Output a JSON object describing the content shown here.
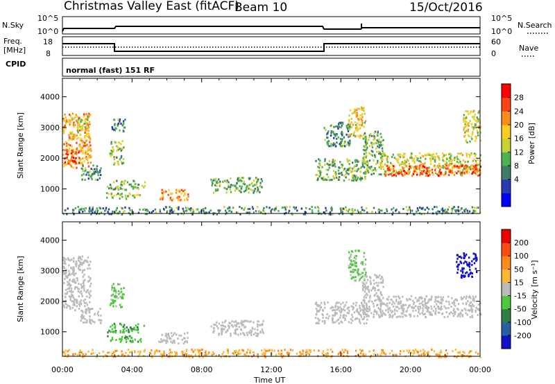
{
  "header": {
    "title": "Christmas Valley East (fitACF)",
    "beam": "Beam 10",
    "date": "15/Oct/2016"
  },
  "summary_panels": {
    "nsky": {
      "label": "N.Sky",
      "ticks": [
        "10^5",
        "10^0"
      ]
    },
    "nsearch": {
      "label": "N.Search"
    },
    "freq": {
      "label_line1": "Freq.",
      "label_line2": "[MHz]",
      "ticks": [
        "18",
        "8"
      ]
    },
    "nave": {
      "label": "Nave",
      "ticks": [
        "60",
        "0"
      ]
    },
    "cpid": {
      "label": "CPID",
      "mode": "normal (fast) 151 RF"
    }
  },
  "time_axis": {
    "label": "Time UT",
    "ticks": [
      "00:00",
      "04:00",
      "08:00",
      "12:00",
      "16:00",
      "20:00",
      "00:00"
    ]
  },
  "power_colorbar": {
    "label": "Power [dB]",
    "ticks": [
      "28",
      "24",
      "20",
      "16",
      "12",
      "8",
      "4"
    ],
    "colors": [
      "#0000ff",
      "#2a3bb0",
      "#3d7d6a",
      "#4fb04f",
      "#c9d235",
      "#ffcc22",
      "#ff8c1a",
      "#ff4411",
      "#ff0000"
    ]
  },
  "velocity_colorbar": {
    "label": "Velocity [m s⁻¹]",
    "ticks": [
      "200",
      "100",
      "50",
      "15",
      "-15",
      "-50",
      "-100",
      "-200"
    ],
    "colors": [
      "#1111c8",
      "#2a5fa5",
      "#2f7f44",
      "#4ec83c",
      "#bbbbbb",
      "#ffb833",
      "#ff8a1a",
      "#ff4a11",
      "#ee0000"
    ]
  },
  "chart_data": [
    {
      "type": "heatmap",
      "name": "power",
      "ylabel": "Slant Range [km]",
      "x_unit": "hours UT",
      "xlim": [
        0,
        24
      ],
      "ylim": [
        200,
        4600
      ],
      "yticks": [
        1000,
        2000,
        3000,
        4000
      ],
      "regions": [
        {
          "t": [
            0.0,
            1.6
          ],
          "r": [
            1700,
            3500
          ],
          "level": 20
        },
        {
          "t": [
            0.0,
            1.0
          ],
          "r": [
            1800,
            2300
          ],
          "level": 26
        },
        {
          "t": [
            0.8,
            1.5
          ],
          "r": [
            2800,
            3400
          ],
          "level": 16
        },
        {
          "t": [
            1.0,
            2.2
          ],
          "r": [
            1300,
            1800
          ],
          "level": 10
        },
        {
          "t": [
            2.7,
            3.5
          ],
          "r": [
            1800,
            2600
          ],
          "level": 14
        },
        {
          "t": [
            2.8,
            3.6
          ],
          "r": [
            2900,
            3300
          ],
          "level": 10
        },
        {
          "t": [
            2.5,
            4.7
          ],
          "r": [
            1000,
            1300
          ],
          "level": 12
        },
        {
          "t": [
            2.5,
            4.5
          ],
          "r": [
            700,
            900
          ],
          "level": 14
        },
        {
          "t": [
            5.5,
            7.2
          ],
          "r": [
            650,
            1000
          ],
          "level": 22
        },
        {
          "t": [
            8.5,
            11.5
          ],
          "r": [
            900,
            1400
          ],
          "level": 12
        },
        {
          "t": [
            14.5,
            17.5
          ],
          "r": [
            1300,
            2000
          ],
          "level": 12
        },
        {
          "t": [
            15.0,
            16.5
          ],
          "r": [
            2400,
            3200
          ],
          "level": 10
        },
        {
          "t": [
            16.4,
            17.4
          ],
          "r": [
            2700,
            3700
          ],
          "level": 18
        },
        {
          "t": [
            17.2,
            18.4
          ],
          "r": [
            1500,
            2900
          ],
          "level": 12
        },
        {
          "t": [
            18.2,
            24.0
          ],
          "r": [
            1500,
            2200
          ],
          "level": 16
        },
        {
          "t": [
            18.5,
            24.0
          ],
          "r": [
            1450,
            1800
          ],
          "level": 24
        },
        {
          "t": [
            23.0,
            24.0
          ],
          "r": [
            2500,
            3600
          ],
          "level": 16
        },
        {
          "t": [
            0.0,
            24.0
          ],
          "r": [
            200,
            450
          ],
          "level": 10
        }
      ]
    },
    {
      "type": "heatmap",
      "name": "velocity",
      "ylabel": "Slant Range [km]",
      "x_unit": "hours UT",
      "xlim": [
        0,
        24
      ],
      "ylim": [
        200,
        4600
      ],
      "yticks": [
        1000,
        2000,
        3000,
        4000
      ],
      "regions": [
        {
          "t": [
            0.0,
            1.6
          ],
          "r": [
            1700,
            3500
          ],
          "level": 0
        },
        {
          "t": [
            1.0,
            2.2
          ],
          "r": [
            1300,
            1800
          ],
          "level": 0
        },
        {
          "t": [
            2.7,
            3.5
          ],
          "r": [
            1800,
            2600
          ],
          "level": 20
        },
        {
          "t": [
            2.5,
            4.7
          ],
          "r": [
            1000,
            1300
          ],
          "level": 30
        },
        {
          "t": [
            2.5,
            4.5
          ],
          "r": [
            700,
            900
          ],
          "level": 25
        },
        {
          "t": [
            5.5,
            7.2
          ],
          "r": [
            650,
            1000
          ],
          "level": 0
        },
        {
          "t": [
            8.5,
            11.5
          ],
          "r": [
            900,
            1400
          ],
          "level": 0
        },
        {
          "t": [
            14.5,
            17.5
          ],
          "r": [
            1300,
            2000
          ],
          "level": 0
        },
        {
          "t": [
            16.4,
            17.4
          ],
          "r": [
            2700,
            3700
          ],
          "level": 20
        },
        {
          "t": [
            17.2,
            18.4
          ],
          "r": [
            1500,
            2900
          ],
          "level": 0
        },
        {
          "t": [
            18.2,
            24.0
          ],
          "r": [
            1500,
            2200
          ],
          "level": 0
        },
        {
          "t": [
            22.6,
            23.8
          ],
          "r": [
            2800,
            3600
          ],
          "level": 250
        },
        {
          "t": [
            0.0,
            24.0
          ],
          "r": [
            200,
            450
          ],
          "level": -30
        }
      ]
    }
  ]
}
